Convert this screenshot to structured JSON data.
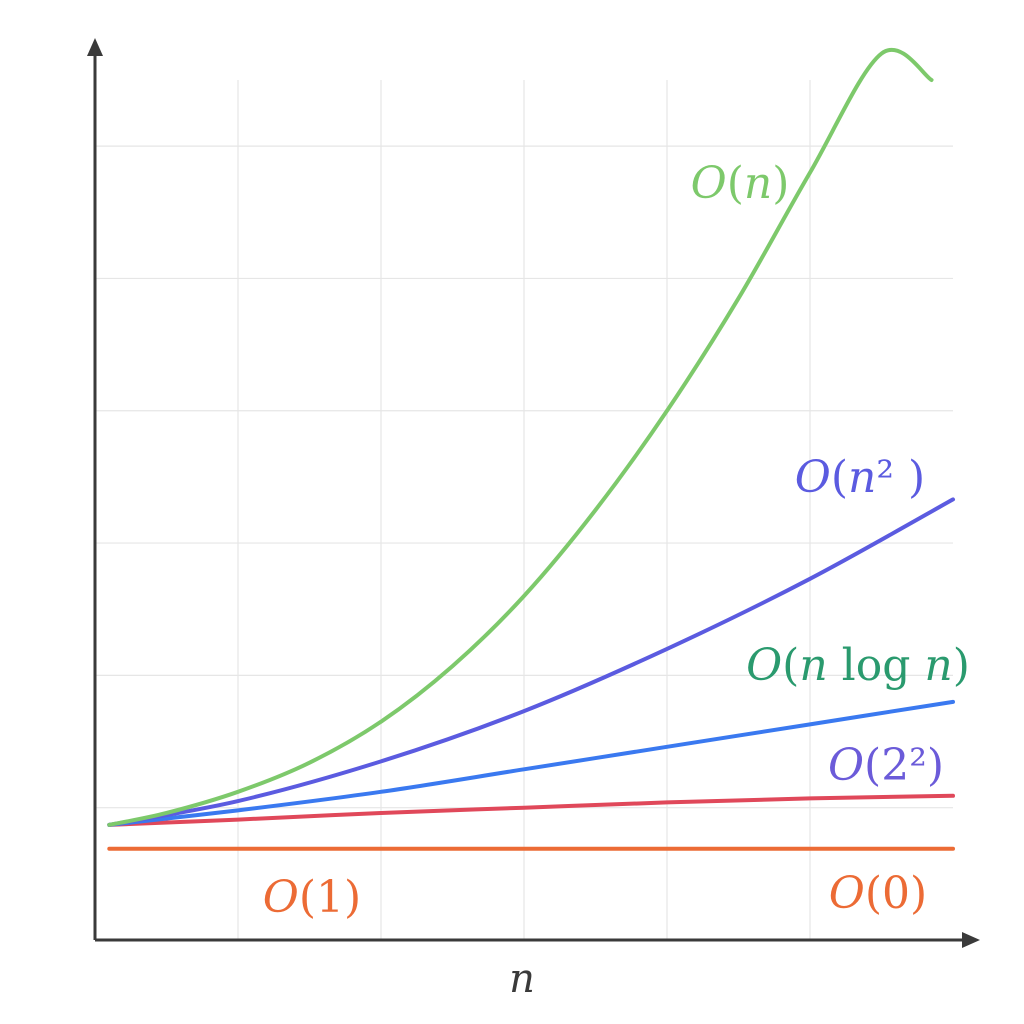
{
  "chart_data": {
    "type": "line",
    "title": "",
    "xlabel": "n",
    "ylabel": "",
    "grid": true,
    "xlim": [
      0,
      6
    ],
    "ylim": [
      0,
      6.5
    ],
    "series": [
      {
        "name": "O(n)",
        "color": "#7dc96b",
        "x": [
          0.1,
          0.5,
          1,
          1.5,
          2,
          2.5,
          3,
          3.5,
          4,
          4.5,
          5,
          5.5,
          5.85
        ],
        "values": [
          0.87,
          0.96,
          1.12,
          1.34,
          1.65,
          2.07,
          2.6,
          3.25,
          4.0,
          4.85,
          5.8,
          6.7,
          6.5
        ]
      },
      {
        "name": "O(n² )",
        "color": "#5b5be0",
        "x": [
          0.1,
          1,
          2,
          3,
          4,
          5,
          6
        ],
        "values": [
          0.87,
          1.05,
          1.35,
          1.73,
          2.2,
          2.73,
          3.33
        ]
      },
      {
        "name": "O(n log n)",
        "color": "#3a79f0",
        "x": [
          0.1,
          1,
          2,
          3,
          4,
          5,
          6
        ],
        "values": [
          0.87,
          0.98,
          1.12,
          1.29,
          1.46,
          1.63,
          1.8
        ]
      },
      {
        "name": "O(2²)",
        "color": "#e0485a",
        "x": [
          0.1,
          1,
          2,
          3,
          4,
          5,
          6
        ],
        "values": [
          0.87,
          0.91,
          0.96,
          1.0,
          1.04,
          1.07,
          1.09
        ]
      },
      {
        "name": "O(1)",
        "color": "#ec6b35",
        "x": [
          0.1,
          6
        ],
        "values": [
          0.69,
          0.69
        ]
      }
    ],
    "annotations": [
      {
        "text": "O(0)",
        "color": "#ec6b35"
      }
    ],
    "colors": {
      "axis": "#3a3a3a",
      "grid": "#e6e6e6",
      "label_teal": "#2a9a6e",
      "label_violet": "#6b5bd9"
    }
  }
}
